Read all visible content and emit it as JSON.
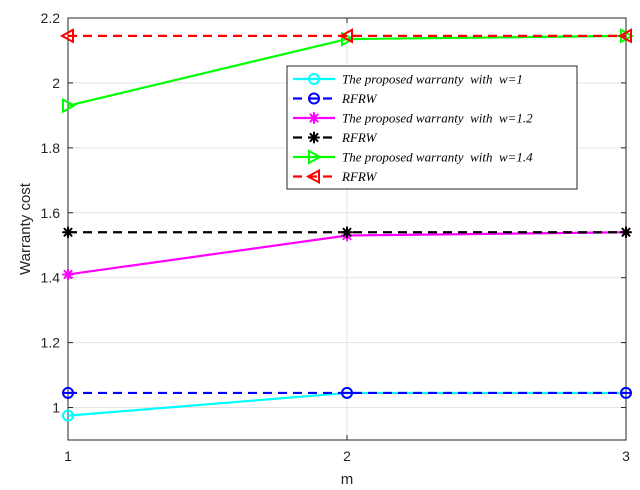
{
  "chart_data": {
    "type": "line",
    "xlabel": "m",
    "ylabel": "Warranty cost",
    "x": [
      1,
      2,
      3
    ],
    "xlim": [
      1,
      3
    ],
    "ylim": [
      0.9,
      2.2
    ],
    "xticks": [
      "1",
      "2",
      "3"
    ],
    "yticks": [
      "1",
      "1.2",
      "1.4",
      "1.6",
      "1.8",
      "2",
      "2.2"
    ],
    "grid": true,
    "legend_position": "top-right",
    "series": [
      {
        "name": "The proposed warranty  with  w=1",
        "values": [
          0.975,
          1.045,
          1.045
        ],
        "color": "#00ffff",
        "style": "solid",
        "marker": "circle"
      },
      {
        "name": "RFRW",
        "values": [
          1.045,
          1.045,
          1.045
        ],
        "color": "#0000ff",
        "style": "dashed",
        "marker": "circle-bar"
      },
      {
        "name": "The proposed warranty  with  w=1.2",
        "values": [
          1.41,
          1.53,
          1.54
        ],
        "color": "#ff00ff",
        "style": "solid",
        "marker": "asterisk"
      },
      {
        "name": "RFRW",
        "values": [
          1.54,
          1.54,
          1.54
        ],
        "color": "#000000",
        "style": "dashed",
        "marker": "asterisk"
      },
      {
        "name": "The proposed warranty  with  w=1.4",
        "values": [
          1.93,
          2.135,
          2.145
        ],
        "color": "#00ff00",
        "style": "solid",
        "marker": "triangle-right"
      },
      {
        "name": "RFRW",
        "values": [
          2.145,
          2.145,
          2.145
        ],
        "color": "#ff0000",
        "style": "dashed",
        "marker": "triangle-left"
      }
    ]
  }
}
